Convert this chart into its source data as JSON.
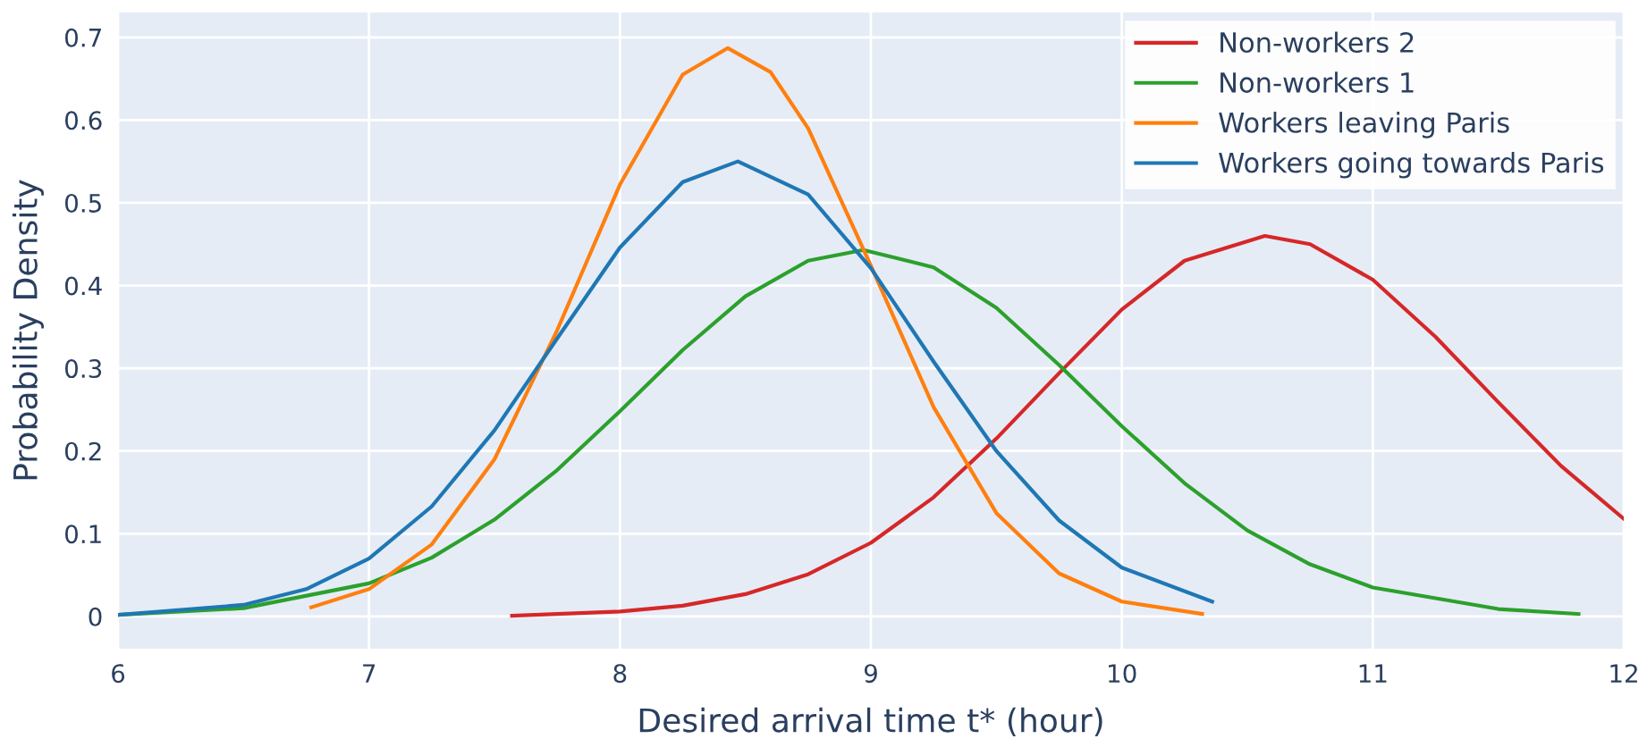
{
  "chart_data": {
    "type": "line",
    "xlabel": "Desired arrival time t* (hour)",
    "ylabel": "Probability Density",
    "xlim": [
      6,
      12
    ],
    "ylim": [
      -0.039,
      0.73
    ],
    "xticks": [
      6,
      7,
      8,
      9,
      10,
      11,
      12
    ],
    "yticks": [
      0,
      0.1,
      0.2,
      0.3,
      0.4,
      0.5,
      0.6,
      0.7
    ],
    "grid": true,
    "legend": "top right",
    "line_style": "solid",
    "marker": "none",
    "series": [
      {
        "name": "Non-workers 2",
        "color": "#d62728",
        "x": [
          7.57,
          8.0,
          8.25,
          8.5,
          8.75,
          9.0,
          9.25,
          9.5,
          9.75,
          10.0,
          10.25,
          10.57,
          10.75,
          11.0,
          11.25,
          11.5,
          11.75,
          12.0
        ],
        "values": [
          0.001,
          0.006,
          0.013,
          0.027,
          0.051,
          0.089,
          0.144,
          0.215,
          0.294,
          0.371,
          0.43,
          0.46,
          0.45,
          0.407,
          0.338,
          0.259,
          0.182,
          0.118
        ]
      },
      {
        "name": "Non-workers 1",
        "color": "#2ca02c",
        "x": [
          6.0,
          6.5,
          7.0,
          7.25,
          7.5,
          7.75,
          8.0,
          8.25,
          8.5,
          8.75,
          8.97,
          9.25,
          9.5,
          9.75,
          10.0,
          10.25,
          10.5,
          10.75,
          11.0,
          11.5,
          11.82
        ],
        "values": [
          0.002,
          0.01,
          0.04,
          0.071,
          0.117,
          0.177,
          0.248,
          0.322,
          0.387,
          0.43,
          0.443,
          0.422,
          0.373,
          0.304,
          0.23,
          0.161,
          0.104,
          0.063,
          0.035,
          0.009,
          0.003
        ]
      },
      {
        "name": "Workers leaving Paris",
        "color": "#ff7f0e",
        "x": [
          6.77,
          7.0,
          7.25,
          7.5,
          7.75,
          8.0,
          8.25,
          8.43,
          8.6,
          8.75,
          9.0,
          9.25,
          9.5,
          9.75,
          10.0,
          10.32
        ],
        "values": [
          0.011,
          0.033,
          0.087,
          0.19,
          0.346,
          0.522,
          0.655,
          0.687,
          0.658,
          0.59,
          0.424,
          0.253,
          0.125,
          0.052,
          0.018,
          0.003
        ]
      },
      {
        "name": "Workers going towards Paris",
        "color": "#1f77b4",
        "x": [
          6.0,
          6.5,
          6.75,
          7.0,
          7.25,
          7.5,
          7.75,
          8.0,
          8.25,
          8.47,
          8.75,
          9.0,
          9.25,
          9.5,
          9.75,
          10.0,
          10.36
        ],
        "values": [
          0.002,
          0.014,
          0.033,
          0.07,
          0.133,
          0.225,
          0.336,
          0.446,
          0.525,
          0.55,
          0.51,
          0.421,
          0.308,
          0.2,
          0.116,
          0.059,
          0.018
        ]
      }
    ]
  }
}
